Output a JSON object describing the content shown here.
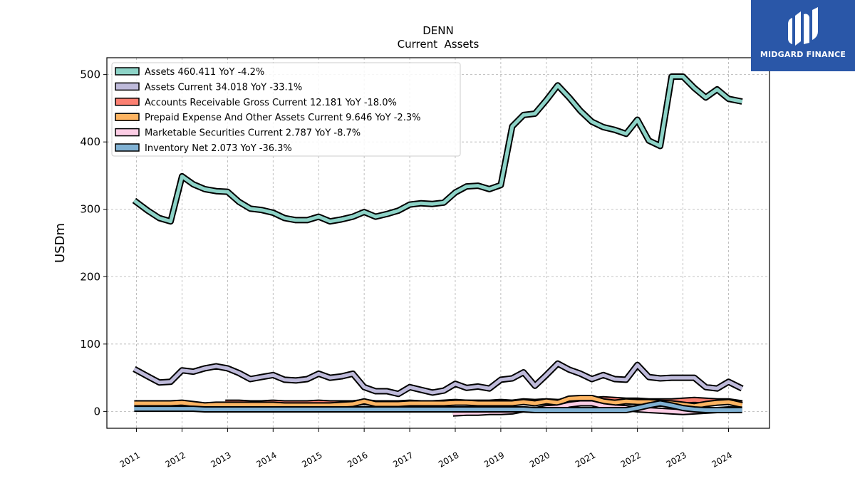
{
  "brand": {
    "name": "MIDGARD FINANCE"
  },
  "chart_data": {
    "type": "line",
    "title": "DENN",
    "subtitle": "Current  Assets",
    "ylabel": "USDm",
    "xlabel": "",
    "ylim": [
      -25,
      525
    ],
    "xlim": [
      2010.35,
      2024.9
    ],
    "yticks": [
      0,
      100,
      200,
      300,
      400,
      500
    ],
    "ytick_labels": [
      "0",
      "100",
      "200",
      "300",
      "400",
      "500"
    ],
    "xticks": [
      2011,
      2012,
      2013,
      2014,
      2015,
      2016,
      2017,
      2018,
      2019,
      2020,
      2021,
      2022,
      2023,
      2024
    ],
    "xtick_labels": [
      "2011",
      "2012",
      "2013",
      "2014",
      "2015",
      "2016",
      "2017",
      "2018",
      "2019",
      "2020",
      "2021",
      "2022",
      "2023",
      "2024"
    ],
    "grid": true,
    "legend_position": "top-left",
    "series": [
      {
        "name": "Assets  460.411 YoY -4.2%",
        "color": "#8dd3c7",
        "x": [
          2010.95,
          2011.25,
          2011.5,
          2011.75,
          2012.0,
          2012.25,
          2012.5,
          2012.75,
          2013.0,
          2013.25,
          2013.5,
          2013.75,
          2014.0,
          2014.25,
          2014.5,
          2014.75,
          2015.0,
          2015.25,
          2015.5,
          2015.75,
          2016.0,
          2016.25,
          2016.5,
          2016.75,
          2017.0,
          2017.25,
          2017.5,
          2017.75,
          2018.0,
          2018.25,
          2018.5,
          2018.75,
          2019.0,
          2019.25,
          2019.5,
          2019.75,
          2020.0,
          2020.25,
          2020.5,
          2020.75,
          2021.0,
          2021.25,
          2021.5,
          2021.75,
          2022.0,
          2022.25,
          2022.5,
          2022.75,
          2023.0,
          2023.25,
          2023.5,
          2023.75,
          2024.0,
          2024.3
        ],
        "values": [
          313,
          298,
          287,
          282,
          349,
          337,
          330,
          327,
          326,
          311,
          301,
          299,
          295,
          287,
          284,
          284,
          289,
          282,
          285,
          289,
          296,
          289,
          293,
          298,
          307,
          309,
          308,
          310,
          325,
          334,
          335,
          330,
          336,
          423,
          440,
          442,
          462,
          484,
          466,
          446,
          430,
          422,
          418,
          412,
          433,
          402,
          394,
          497,
          497,
          480,
          466,
          478,
          464,
          460
        ]
      },
      {
        "name": "Assets Current  34.018 YoY -33.1%",
        "color": "#bebada",
        "x": [
          2010.95,
          2011.25,
          2011.5,
          2011.75,
          2012.0,
          2012.25,
          2012.5,
          2012.75,
          2013.0,
          2013.25,
          2013.5,
          2013.75,
          2014.0,
          2014.25,
          2014.5,
          2014.75,
          2015.0,
          2015.25,
          2015.5,
          2015.75,
          2016.0,
          2016.25,
          2016.5,
          2016.75,
          2017.0,
          2017.25,
          2017.5,
          2017.75,
          2018.0,
          2018.25,
          2018.5,
          2018.75,
          2019.0,
          2019.25,
          2019.5,
          2019.75,
          2020.0,
          2020.25,
          2020.5,
          2020.75,
          2021.0,
          2021.25,
          2021.5,
          2021.75,
          2022.0,
          2022.25,
          2022.5,
          2022.75,
          2023.0,
          2023.25,
          2023.5,
          2023.75,
          2024.0,
          2024.3
        ],
        "values": [
          63,
          52,
          43,
          44,
          61,
          59,
          64,
          67,
          64,
          57,
          48,
          51,
          54,
          47,
          46,
          48,
          56,
          50,
          52,
          56,
          36,
          30,
          30,
          26,
          36,
          32,
          28,
          31,
          41,
          35,
          37,
          34,
          47,
          49,
          58,
          38,
          54,
          71,
          62,
          56,
          48,
          54,
          48,
          47,
          69,
          51,
          49,
          50,
          50,
          50,
          36,
          34,
          44,
          34
        ]
      },
      {
        "name": "Accounts Receivable Gross Current  12.181 YoY -18.0%",
        "color": "#fb8072",
        "x": [
          2012.95,
          2013.25,
          2013.5,
          2013.75,
          2014.0,
          2014.25,
          2014.5,
          2014.75,
          2015.0,
          2015.25,
          2015.5,
          2015.75,
          2016.0,
          2016.25,
          2016.5,
          2016.75,
          2017.0,
          2017.25,
          2017.5,
          2017.75,
          2018.0,
          2018.25,
          2018.5,
          2018.75,
          2019.0,
          2019.25,
          2019.5,
          2019.75,
          2020.0,
          2020.25,
          2020.5,
          2020.75,
          2021.0,
          2021.25,
          2021.5,
          2021.75,
          2022.0,
          2022.25,
          2022.5,
          2022.75,
          2023.0,
          2023.25,
          2023.5,
          2023.75,
          2024.0,
          2024.3
        ],
        "values": [
          13,
          13,
          12,
          12,
          13,
          12,
          12,
          12,
          13,
          12,
          12,
          12,
          14,
          12,
          12,
          12,
          13,
          12,
          12,
          13,
          14,
          13,
          13,
          13,
          14,
          13,
          15,
          14,
          15,
          14,
          15,
          15,
          17,
          18,
          17,
          16,
          16,
          15,
          15,
          15,
          16,
          17,
          16,
          15,
          15,
          12
        ]
      },
      {
        "name": "Prepaid Expense And Other Assets Current  9.646 YoY -2.3%",
        "color": "#fdb462",
        "x": [
          2010.95,
          2011.25,
          2011.5,
          2011.75,
          2012.0,
          2012.25,
          2012.5,
          2012.75,
          2013.0,
          2013.25,
          2013.5,
          2013.75,
          2014.0,
          2014.25,
          2014.5,
          2014.75,
          2015.0,
          2015.25,
          2015.5,
          2015.75,
          2016.0,
          2016.25,
          2016.5,
          2016.75,
          2017.0,
          2017.25,
          2017.5,
          2017.75,
          2018.0,
          2018.25,
          2018.5,
          2018.75,
          2019.0,
          2019.25,
          2019.5,
          2019.75,
          2020.0,
          2020.25,
          2020.5,
          2020.75,
          2021.0,
          2021.25,
          2021.5,
          2021.75,
          2022.0,
          2022.25,
          2022.5,
          2022.75,
          2023.0,
          2023.25,
          2023.5,
          2023.75,
          2024.0,
          2024.3
        ],
        "values": [
          12,
          12,
          12,
          12,
          13,
          11,
          9,
          10,
          10,
          10,
          10,
          10,
          10,
          9,
          9,
          9,
          9,
          9,
          10,
          11,
          15,
          11,
          11,
          11,
          12,
          12,
          12,
          12,
          13,
          13,
          12,
          12,
          12,
          12,
          14,
          12,
          15,
          13,
          19,
          20,
          20,
          15,
          13,
          15,
          14,
          14,
          13,
          12,
          10,
          8,
          11,
          13,
          14,
          9.6
        ]
      },
      {
        "name": "Marketable Securities Current  2.787 YoY -8.7%",
        "color": "#fccde5",
        "x": [
          2017.95,
          2018.25,
          2018.5,
          2018.75,
          2019.0,
          2019.25,
          2019.5,
          2019.75,
          2020.0,
          2020.25,
          2020.5,
          2020.75,
          2021.0,
          2021.25,
          2021.5,
          2021.75,
          2022.0,
          2022.25,
          2022.5,
          2022.75,
          2023.0,
          2023.25,
          2023.5,
          2023.75,
          2024.0,
          2024.3
        ],
        "values": [
          -3,
          -2,
          -2,
          -1,
          -1,
          0,
          3,
          2,
          5,
          6,
          10,
          12,
          12,
          8,
          6,
          5,
          3,
          2,
          1,
          0,
          -1,
          0,
          1,
          2,
          3,
          2.8
        ]
      },
      {
        "name": "Inventory Net  2.073 YoY -36.3%",
        "color": "#80b1d3",
        "x": [
          2010.95,
          2011.25,
          2011.5,
          2011.75,
          2012.0,
          2012.25,
          2012.5,
          2012.75,
          2013.0,
          2013.25,
          2013.5,
          2013.75,
          2014.0,
          2014.25,
          2014.5,
          2014.75,
          2015.0,
          2015.25,
          2015.5,
          2015.75,
          2016.0,
          2016.25,
          2016.5,
          2016.75,
          2017.0,
          2017.25,
          2017.5,
          2017.75,
          2018.0,
          2018.25,
          2018.5,
          2018.75,
          2019.0,
          2019.25,
          2019.5,
          2019.75,
          2020.0,
          2020.25,
          2020.5,
          2020.75,
          2021.0,
          2021.25,
          2021.5,
          2021.75,
          2022.0,
          2022.25,
          2022.5,
          2022.75,
          2023.0,
          2023.25,
          2023.5,
          2023.75,
          2024.0,
          2024.3
        ],
        "values": [
          4,
          4,
          4,
          4,
          4,
          4,
          3,
          3,
          3,
          3,
          3,
          3,
          3,
          3,
          3,
          3,
          3,
          3,
          3,
          3,
          3,
          3,
          3,
          3,
          3,
          3,
          3,
          3,
          3,
          3,
          3,
          3,
          3,
          3,
          3,
          2,
          2,
          2,
          2,
          2,
          2,
          2,
          2,
          2,
          5,
          9,
          12,
          9,
          5,
          3,
          2,
          2,
          2,
          2.1
        ]
      }
    ]
  }
}
